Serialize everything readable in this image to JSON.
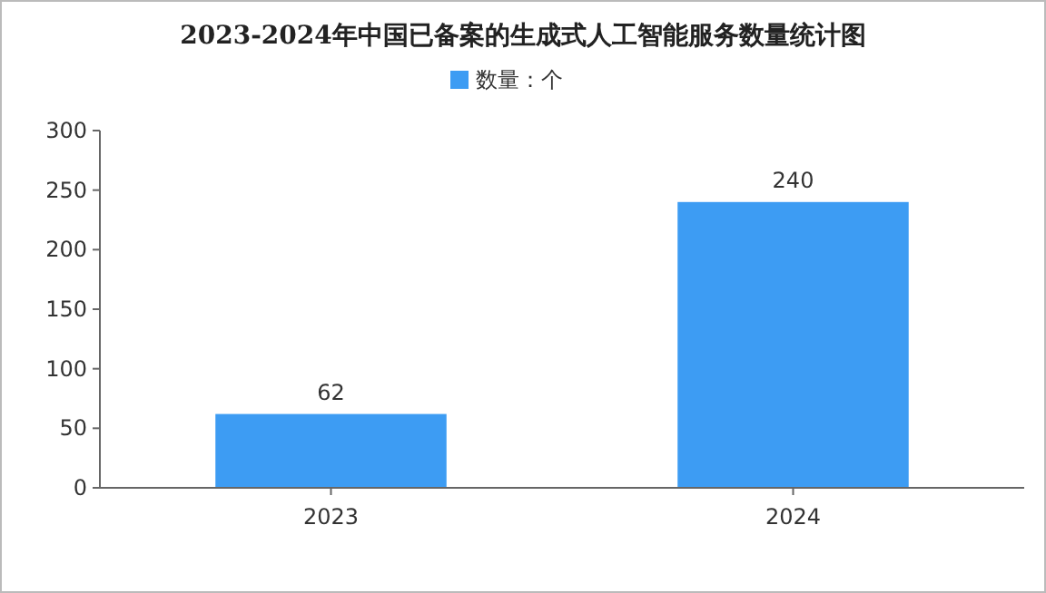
{
  "chart_data": {
    "type": "bar",
    "title": "2023-2024年中国已备案的生成式人工智能服务数量统计图",
    "categories": [
      "2023",
      "2024"
    ],
    "series": [
      {
        "name": "数量：个",
        "color": "#3d9cf3",
        "values": [
          62,
          240
        ]
      }
    ],
    "ylim": [
      0,
      300
    ],
    "yticks": [
      0,
      50,
      100,
      150,
      200,
      250,
      300
    ],
    "grid": false,
    "legend": "top",
    "data_labels": true
  }
}
